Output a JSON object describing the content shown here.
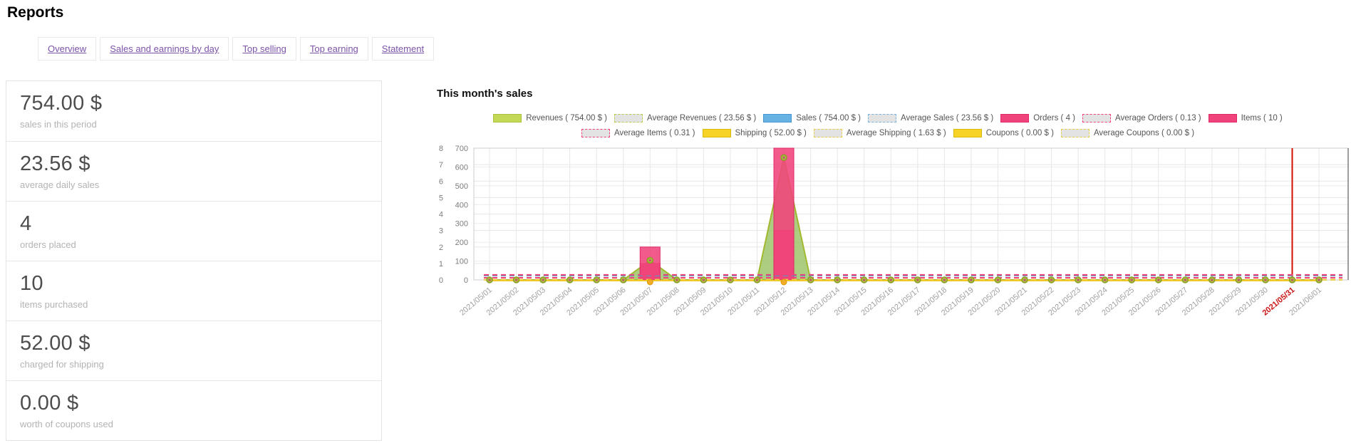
{
  "page": {
    "title": "Reports"
  },
  "tabs": [
    {
      "label": "Overview"
    },
    {
      "label": "Sales and earnings by day"
    },
    {
      "label": "Top selling"
    },
    {
      "label": "Top earning"
    },
    {
      "label": "Statement"
    }
  ],
  "stats": [
    {
      "value": "754.00 $",
      "label": "sales in this period"
    },
    {
      "value": "23.56 $",
      "label": "average daily sales"
    },
    {
      "value": "4",
      "label": "orders placed"
    },
    {
      "value": "10",
      "label": "items purchased"
    },
    {
      "value": "52.00 $",
      "label": "charged for shipping"
    },
    {
      "value": "0.00 $",
      "label": "worth of coupons used"
    }
  ],
  "chart": {
    "title": "This month's sales"
  },
  "legend": {
    "rows": [
      [
        {
          "label": "Revenues ( 754.00 $ )",
          "type": "solid",
          "color": "#c3d857",
          "border": "#a9c23a"
        },
        {
          "label": "Average Revenues ( 23.56 $ )",
          "type": "avg",
          "border": "#b9cc4e"
        },
        {
          "label": "Sales ( 754.00 $ )",
          "type": "solid",
          "color": "#67b1e3",
          "border": "#4798d2"
        },
        {
          "label": "Average Sales ( 23.56 $ )",
          "type": "avg",
          "border": "#7db4dd"
        },
        {
          "label": "Orders ( 4 )",
          "type": "solid",
          "color": "#f0437b",
          "border": "#dd2a66"
        },
        {
          "label": "Average Orders ( 0.13 )",
          "type": "avg",
          "border": "#f0437b"
        },
        {
          "label": "Items ( 10 )",
          "type": "solid",
          "color": "#f0437b",
          "border": "#dd2a66"
        }
      ],
      [
        {
          "label": "Average Items ( 0.31 )",
          "type": "avg",
          "border": "#f0437b"
        },
        {
          "label": "Shipping ( 52.00 $ )",
          "type": "solid",
          "color": "#f6d326",
          "border": "#dbb90a"
        },
        {
          "label": "Average Shipping ( 1.63 $ )",
          "type": "avg",
          "border": "#e8cc4a"
        },
        {
          "label": "Coupons ( 0.00 $ )",
          "type": "solid",
          "color": "#f6d326",
          "border": "#dbb90a"
        },
        {
          "label": "Average Coupons ( 0.00 $ )",
          "type": "avg",
          "border": "#e8cc4a"
        }
      ]
    ]
  },
  "chart_data": {
    "type": "area+bar+line",
    "title": "This month's sales",
    "x": [
      "2021/05/01",
      "2021/05/02",
      "2021/05/03",
      "2021/05/04",
      "2021/05/05",
      "2021/05/06",
      "2021/05/07",
      "2021/05/08",
      "2021/05/09",
      "2021/05/10",
      "2021/05/11",
      "2021/05/12",
      "2021/05/13",
      "2021/05/14",
      "2021/05/15",
      "2021/05/16",
      "2021/05/17",
      "2021/05/18",
      "2021/05/19",
      "2021/05/20",
      "2021/05/21",
      "2021/05/22",
      "2021/05/23",
      "2021/05/24",
      "2021/05/25",
      "2021/05/26",
      "2021/05/27",
      "2021/05/28",
      "2021/05/29",
      "2021/05/30",
      "2021/05/31",
      "2021/06/01"
    ],
    "highlight_x": "2021/05/31",
    "count_ticks": [
      0,
      1,
      2,
      3,
      4,
      5,
      6,
      7,
      8
    ],
    "money_ticks": [
      0,
      100,
      200,
      300,
      400,
      500,
      600,
      700
    ],
    "axes": {
      "count_axis_range": [
        0,
        8
      ],
      "money_axis_range": [
        0,
        700
      ],
      "grid": true,
      "legend_position": "top-center"
    },
    "series": [
      {
        "name": "Revenues",
        "type": "area",
        "axis": "money",
        "color": "#a3b92f",
        "total": "754.00 $",
        "values": [
          0,
          0,
          0,
          0,
          0,
          0,
          104,
          0,
          0,
          0,
          0,
          650,
          0,
          0,
          0,
          0,
          0,
          0,
          0,
          0,
          0,
          0,
          0,
          0,
          0,
          0,
          0,
          0,
          0,
          0,
          0,
          0
        ]
      },
      {
        "name": "Sales",
        "type": "area",
        "axis": "money",
        "color": "#4798d2",
        "total": "754.00 $",
        "values": [
          0,
          0,
          0,
          0,
          0,
          0,
          104,
          0,
          0,
          0,
          0,
          650,
          0,
          0,
          0,
          0,
          0,
          0,
          0,
          0,
          0,
          0,
          0,
          0,
          0,
          0,
          0,
          0,
          0,
          0,
          0,
          0
        ]
      },
      {
        "name": "Orders",
        "type": "bar",
        "axis": "count",
        "color": "#f0437b",
        "total": "4",
        "values": [
          0,
          0,
          0,
          0,
          0,
          0,
          1,
          0,
          0,
          0,
          0,
          3,
          0,
          0,
          0,
          0,
          0,
          0,
          0,
          0,
          0,
          0,
          0,
          0,
          0,
          0,
          0,
          0,
          0,
          0,
          0,
          0
        ]
      },
      {
        "name": "Items",
        "type": "bar",
        "axis": "count",
        "color": "#f0437b",
        "total": "10",
        "values": [
          0,
          0,
          0,
          0,
          0,
          0,
          2,
          0,
          0,
          0,
          0,
          8,
          0,
          0,
          0,
          0,
          0,
          0,
          0,
          0,
          0,
          0,
          0,
          0,
          0,
          0,
          0,
          0,
          0,
          0,
          0,
          0
        ]
      },
      {
        "name": "Shipping",
        "type": "line",
        "axis": "money",
        "color": "#f0c929",
        "total": "52.00 $",
        "values": [
          0,
          0,
          0,
          0,
          0,
          0,
          0,
          0,
          0,
          0,
          0,
          52,
          0,
          0,
          0,
          0,
          0,
          0,
          0,
          0,
          0,
          0,
          0,
          0,
          0,
          0,
          0,
          0,
          0,
          0,
          0,
          0
        ]
      },
      {
        "name": "Coupons",
        "type": "line",
        "axis": "money",
        "color": "#f0c929",
        "total": "0.00 $",
        "values": [
          0,
          0,
          0,
          0,
          0,
          0,
          0,
          0,
          0,
          0,
          0,
          0,
          0,
          0,
          0,
          0,
          0,
          0,
          0,
          0,
          0,
          0,
          0,
          0,
          0,
          0,
          0,
          0,
          0,
          0,
          0,
          0
        ]
      }
    ],
    "averages": [
      {
        "name": "Average Revenues",
        "value": 23.56,
        "axis": "money",
        "color": "#a3b92f"
      },
      {
        "name": "Average Sales",
        "value": 23.56,
        "axis": "money",
        "color": "#4798d2"
      },
      {
        "name": "Average Orders",
        "value": 0.13,
        "axis": "count",
        "color": "#f0437b"
      },
      {
        "name": "Average Items",
        "value": 0.31,
        "axis": "count",
        "color": "#f0437b"
      },
      {
        "name": "Average Shipping",
        "value": 1.63,
        "axis": "money",
        "color": "#e8cc4a"
      },
      {
        "name": "Average Coupons",
        "value": 0.0,
        "axis": "money",
        "color": "#e8cc4a"
      }
    ]
  }
}
